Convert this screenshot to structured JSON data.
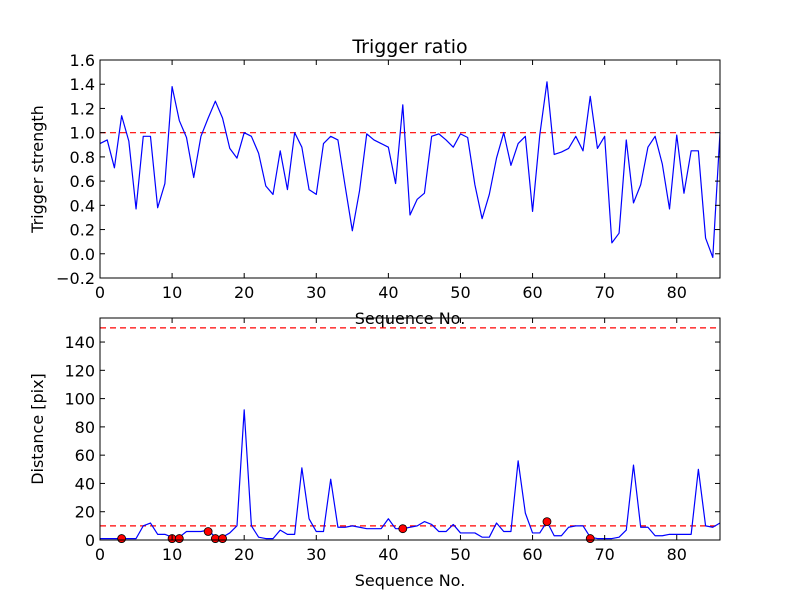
{
  "figure": {
    "background": "#ffffff"
  },
  "chart_data": [
    {
      "type": "line",
      "title": "Trigger ratio",
      "xlabel": "Sequence No.",
      "ylabel": "Trigger strength",
      "xlim": [
        0,
        86
      ],
      "ylim": [
        -0.2,
        1.6
      ],
      "x_ticks": [
        0,
        10,
        20,
        30,
        40,
        50,
        60,
        70,
        80
      ],
      "y_ticks": [
        -0.2,
        0.0,
        0.2,
        0.4,
        0.6,
        0.8,
        1.0,
        1.2,
        1.4,
        1.6
      ],
      "grid": false,
      "series": [
        {
          "color": "#0000ff",
          "x": [
            0,
            1,
            2,
            3,
            4,
            5,
            6,
            7,
            8,
            9,
            10,
            11,
            12,
            13,
            14,
            15,
            16,
            17,
            18,
            19,
            20,
            21,
            22,
            23,
            24,
            25,
            26,
            27,
            28,
            29,
            30,
            31,
            32,
            33,
            34,
            35,
            36,
            37,
            38,
            39,
            40,
            41,
            42,
            43,
            44,
            45,
            46,
            47,
            48,
            49,
            50,
            51,
            52,
            53,
            54,
            55,
            56,
            57,
            58,
            59,
            60,
            61,
            62,
            63,
            64,
            65,
            66,
            67,
            68,
            69,
            70,
            71,
            72,
            73,
            74,
            75,
            76,
            77,
            78,
            79,
            80,
            81,
            82,
            83,
            84,
            85,
            86
          ],
          "y": [
            0.91,
            0.94,
            0.71,
            1.14,
            0.93,
            0.37,
            0.97,
            0.97,
            0.38,
            0.58,
            1.38,
            1.1,
            0.96,
            0.63,
            0.97,
            1.12,
            1.26,
            1.12,
            0.87,
            0.79,
            1.0,
            0.97,
            0.83,
            0.56,
            0.49,
            0.85,
            0.53,
            1.0,
            0.88,
            0.53,
            0.49,
            0.91,
            0.97,
            0.94,
            0.56,
            0.19,
            0.52,
            0.99,
            0.94,
            0.91,
            0.88,
            0.58,
            1.23,
            0.32,
            0.45,
            0.5,
            0.97,
            0.99,
            0.94,
            0.88,
            0.99,
            0.96,
            0.57,
            0.29,
            0.49,
            0.79,
            1.0,
            0.73,
            0.91,
            0.97,
            0.35,
            0.98,
            1.42,
            0.82,
            0.84,
            0.87,
            0.97,
            0.85,
            1.3,
            0.87,
            0.97,
            0.09,
            0.17,
            0.94,
            0.42,
            0.57,
            0.88,
            0.97,
            0.74,
            0.37,
            0.98,
            0.5,
            0.85,
            0.85,
            0.13,
            -0.03,
            1.0
          ]
        }
      ],
      "reference_lines": [
        {
          "y": 1.0,
          "color": "#ff0000",
          "style": "dashed"
        }
      ]
    },
    {
      "type": "line",
      "title": "",
      "xlabel": "Sequence No.",
      "ylabel": "Distance [pix]",
      "xlim": [
        0,
        86
      ],
      "ylim": [
        0,
        157
      ],
      "x_ticks": [
        0,
        10,
        20,
        30,
        40,
        50,
        60,
        70,
        80
      ],
      "y_ticks": [
        0,
        20,
        40,
        60,
        80,
        100,
        120,
        140
      ],
      "grid": false,
      "series": [
        {
          "color": "#0000ff",
          "x": [
            0,
            1,
            2,
            3,
            4,
            5,
            6,
            7,
            8,
            9,
            10,
            11,
            12,
            13,
            14,
            15,
            16,
            17,
            18,
            19,
            20,
            21,
            22,
            23,
            24,
            25,
            26,
            27,
            28,
            29,
            30,
            31,
            32,
            33,
            34,
            35,
            36,
            37,
            38,
            39,
            40,
            41,
            42,
            43,
            44,
            45,
            46,
            47,
            48,
            49,
            50,
            51,
            52,
            53,
            54,
            55,
            56,
            57,
            58,
            59,
            60,
            61,
            62,
            63,
            64,
            65,
            66,
            67,
            68,
            69,
            70,
            71,
            72,
            73,
            74,
            75,
            76,
            77,
            78,
            79,
            80,
            81,
            82,
            83,
            84,
            85,
            86
          ],
          "y": [
            1,
            1,
            1,
            1,
            1,
            1,
            10,
            12,
            4,
            4,
            2,
            2,
            6,
            6,
            6,
            7,
            2,
            2,
            5,
            10,
            92,
            10,
            2,
            1,
            1,
            7,
            4,
            4,
            51,
            15,
            6,
            6,
            43,
            9,
            9,
            10,
            9,
            8,
            8,
            8,
            15,
            8,
            8,
            9,
            10,
            13,
            11,
            6,
            6,
            11,
            5,
            5,
            5,
            2,
            2,
            12,
            6,
            6,
            56,
            19,
            5,
            5,
            13,
            3,
            3,
            9,
            10,
            10,
            2,
            1,
            1,
            1,
            2,
            7,
            53,
            9,
            9,
            3,
            3,
            4,
            4,
            4,
            4,
            50,
            10,
            9,
            12
          ]
        }
      ],
      "markers": {
        "color": "#ff0000",
        "x": [
          3,
          10,
          11,
          15,
          16,
          17,
          42,
          62,
          68
        ],
        "y": [
          1,
          1,
          1,
          6,
          1,
          1,
          8,
          13,
          1
        ]
      },
      "reference_lines": [
        {
          "y": 150,
          "color": "#ff0000",
          "style": "dashed"
        },
        {
          "y": 10,
          "color": "#ff0000",
          "style": "dashed"
        }
      ]
    }
  ]
}
